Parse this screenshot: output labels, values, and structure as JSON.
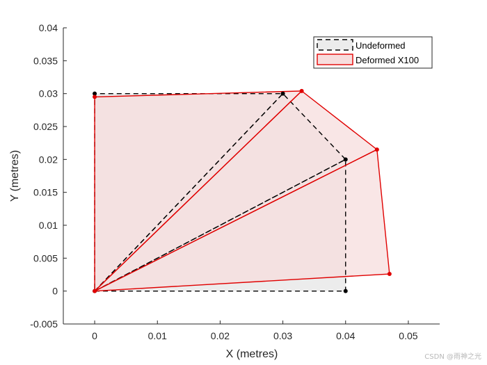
{
  "chart_data": {
    "type": "line",
    "xlabel": "X (metres)",
    "ylabel": "Y (metres)",
    "xlim": [
      -0.005,
      0.055
    ],
    "ylim": [
      -0.005,
      0.04
    ],
    "x_ticks": [
      "0",
      "0.01",
      "0.02",
      "0.03",
      "0.04",
      "0.05"
    ],
    "x_tick_values": [
      0,
      0.01,
      0.02,
      0.03,
      0.04,
      0.05
    ],
    "y_ticks": [
      "-0.005",
      "0",
      "0.005",
      "0.01",
      "0.015",
      "0.02",
      "0.025",
      "0.03",
      "0.035",
      "0.04"
    ],
    "y_tick_values": [
      -0.005,
      0,
      0.005,
      0.01,
      0.015,
      0.02,
      0.025,
      0.03,
      0.035,
      0.04
    ],
    "grid": false,
    "legend_position": "top-right",
    "series": [
      {
        "name": "Undeformed",
        "color": "#000000",
        "fill": "#ececec",
        "line_style": "dashed",
        "nodes": [
          [
            0,
            0
          ],
          [
            0.04,
            0
          ],
          [
            0.04,
            0.02
          ],
          [
            0.03,
            0.03
          ],
          [
            0,
            0.03
          ]
        ],
        "elements": [
          [
            0,
            1,
            2
          ],
          [
            0,
            2,
            3
          ],
          [
            0,
            3,
            4
          ]
        ]
      },
      {
        "name": "Deformed X100",
        "color": "#e00000",
        "fill": "#f7dddd",
        "line_style": "solid",
        "nodes": [
          [
            0,
            0
          ],
          [
            0.047,
            0.0026
          ],
          [
            0.045,
            0.0215
          ],
          [
            0.033,
            0.0304
          ],
          [
            0,
            0.0295
          ]
        ],
        "elements": [
          [
            0,
            1,
            2
          ],
          [
            0,
            2,
            3
          ],
          [
            0,
            3,
            4
          ]
        ]
      }
    ]
  },
  "watermark": "CSDN @雨神之光"
}
